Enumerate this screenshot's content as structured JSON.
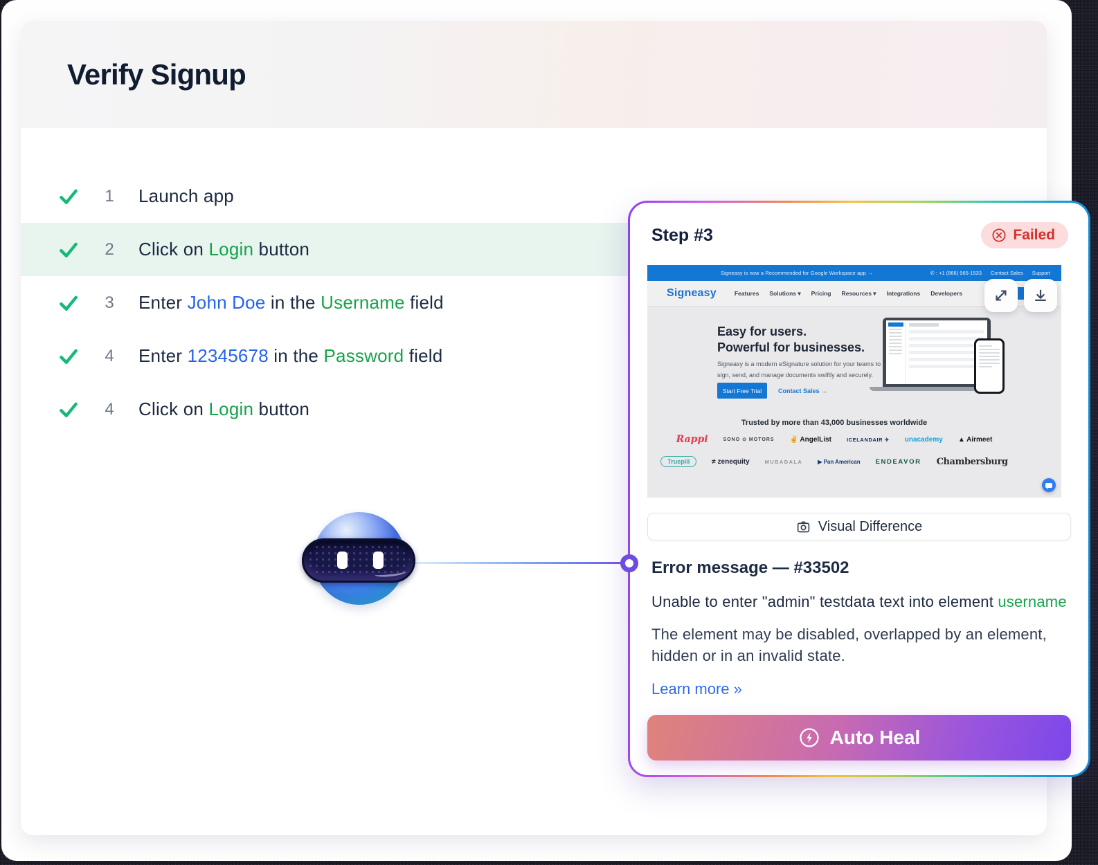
{
  "page": {
    "title": "Verify Signup"
  },
  "colors": {
    "step_green": "#16a34a",
    "step_blue": "#2563eb",
    "check_green": "#17b978",
    "highlight_row_bg": "#e8f4ee",
    "failed_red": "#d5302c",
    "failed_bg": "#fcdcdc",
    "link_blue": "#2d6cea",
    "banner_blue": "#1377d4",
    "autoheal_gradient": [
      "#e0837a",
      "#7c47ea"
    ],
    "panel_border_gradient": [
      "#8f3ff0",
      "#f5c23f",
      "#1486d0"
    ]
  },
  "steps": [
    {
      "number": "1",
      "highlight": false,
      "parts": [
        {
          "text": "Launch app",
          "color": "dark"
        }
      ]
    },
    {
      "number": "2",
      "highlight": true,
      "parts": [
        {
          "text": "Click on ",
          "color": "dark"
        },
        {
          "text": "Login",
          "color": "green"
        },
        {
          "text": " button",
          "color": "dark"
        }
      ]
    },
    {
      "number": "3",
      "highlight": false,
      "parts": [
        {
          "text": "Enter ",
          "color": "dark"
        },
        {
          "text": "John Doe",
          "color": "blue"
        },
        {
          "text": " in the ",
          "color": "dark"
        },
        {
          "text": "Username",
          "color": "green"
        },
        {
          "text": " field",
          "color": "dark"
        }
      ]
    },
    {
      "number": "4",
      "highlight": false,
      "parts": [
        {
          "text": "Enter ",
          "color": "dark"
        },
        {
          "text": "12345678",
          "color": "blue"
        },
        {
          "text": " in the ",
          "color": "dark"
        },
        {
          "text": "Password",
          "color": "green"
        },
        {
          "text": " field",
          "color": "dark"
        }
      ]
    },
    {
      "number": "4",
      "highlight": false,
      "parts": [
        {
          "text": "Click on ",
          "color": "dark"
        },
        {
          "text": "Login",
          "color": "green"
        },
        {
          "text": " button",
          "color": "dark"
        }
      ]
    }
  ],
  "panel": {
    "step_label": "Step #3",
    "failed_label": "Failed",
    "visual_difference_label": "Visual Difference",
    "error_title": "Error message — #33502",
    "error_line_parts": [
      {
        "text": "Unable to enter \"admin\" testdata text  into element ",
        "color": "dark"
      },
      {
        "text": "username",
        "color": "green"
      }
    ],
    "error_detail": "The element may be disabled, overlapped by an element, hidden or in an invalid state.",
    "learn_more_label": "Learn more »",
    "auto_heal_label": "Auto Heal"
  },
  "screenshot": {
    "banner": {
      "left": "Signeasy is now a Recommended for Google Workspace app →",
      "phone": "✆ : +1 (866) 965-1533",
      "links": [
        "Contact Sales",
        "Support"
      ]
    },
    "nav": {
      "logo": "Signeasy",
      "links": [
        "Features",
        "Solutions ▾",
        "Pricing",
        "Resources ▾",
        "Integrations",
        "Developers"
      ],
      "login": "Log In"
    },
    "hero": {
      "heading1": "Easy for users.",
      "heading2": "Powerful for businesses.",
      "sub1": "Signeasy is a modern eSignature solution for your teams to",
      "sub2": "sign, send, and manage documents swiftly and securely.",
      "cta_primary": "Start Free Trial",
      "cta_secondary": "Contact Sales →"
    },
    "logos": {
      "heading": "Trusted by more than 43,000 businesses worldwide",
      "row1": [
        {
          "text": "Rappi",
          "style": "rappi"
        },
        {
          "text": "SONO ⊙ MOTORS",
          "style": "sono"
        },
        {
          "text": "✌ AngelList",
          "style": "angellist"
        },
        {
          "text": "ICELANDAIR ✈",
          "style": "icelandair"
        },
        {
          "text": "unacademy",
          "style": "unacademy"
        },
        {
          "text": "▲ Airmeet",
          "style": "airmeet"
        }
      ],
      "row2": [
        {
          "text": "Truepill",
          "style": "truepill"
        },
        {
          "text": "≠ zenequity",
          "style": "zenequity"
        },
        {
          "text": "MUBADALA",
          "style": "mubadala"
        },
        {
          "text": "▶ Pan American",
          "style": "panam"
        },
        {
          "text": "ENDEAVOR",
          "style": "endeavor"
        },
        {
          "text": "Chambersburg",
          "style": "chambersburg"
        }
      ]
    }
  }
}
